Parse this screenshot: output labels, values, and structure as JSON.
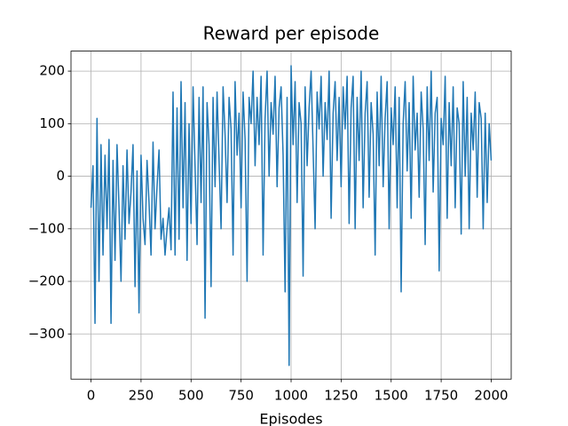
{
  "chart_data": {
    "type": "line",
    "title": "Reward per episode",
    "x_label": "Episodes",
    "x": [
      0,
      10,
      20,
      30,
      40,
      50,
      60,
      70,
      80,
      90,
      100,
      110,
      120,
      130,
      140,
      150,
      160,
      170,
      180,
      190,
      200,
      210,
      220,
      230,
      240,
      250,
      260,
      270,
      280,
      290,
      300,
      310,
      320,
      330,
      340,
      350,
      360,
      370,
      380,
      390,
      400,
      410,
      420,
      430,
      440,
      450,
      460,
      470,
      480,
      490,
      500,
      510,
      520,
      530,
      540,
      550,
      560,
      570,
      580,
      590,
      600,
      610,
      620,
      630,
      640,
      650,
      660,
      670,
      680,
      690,
      700,
      710,
      720,
      730,
      740,
      750,
      760,
      770,
      780,
      790,
      800,
      810,
      820,
      830,
      840,
      850,
      860,
      870,
      880,
      890,
      900,
      910,
      920,
      930,
      940,
      950,
      960,
      970,
      980,
      990,
      1000,
      1010,
      1020,
      1030,
      1040,
      1050,
      1060,
      1070,
      1080,
      1090,
      1100,
      1110,
      1120,
      1130,
      1140,
      1150,
      1160,
      1170,
      1180,
      1190,
      1200,
      1210,
      1220,
      1230,
      1240,
      1250,
      1260,
      1270,
      1280,
      1290,
      1300,
      1310,
      1320,
      1330,
      1340,
      1350,
      1360,
      1370,
      1380,
      1390,
      1400,
      1410,
      1420,
      1430,
      1440,
      1450,
      1460,
      1470,
      1480,
      1490,
      1500,
      1510,
      1520,
      1530,
      1540,
      1550,
      1560,
      1570,
      1580,
      1590,
      1600,
      1610,
      1620,
      1630,
      1640,
      1650,
      1660,
      1670,
      1680,
      1690,
      1700,
      1710,
      1720,
      1730,
      1740,
      1750,
      1760,
      1770,
      1780,
      1790,
      1800,
      1810,
      1820,
      1830,
      1840,
      1850,
      1860,
      1870,
      1880,
      1890,
      1900,
      1910,
      1920,
      1930,
      1940,
      1950,
      1960,
      1970,
      1980,
      1990,
      2000
    ],
    "series": [
      {
        "name": "Reward",
        "color": "#1f77b4",
        "values": [
          -60,
          20,
          -280,
          110,
          -200,
          60,
          -150,
          40,
          -100,
          70,
          -280,
          30,
          -160,
          60,
          -60,
          -200,
          20,
          -120,
          50,
          -90,
          -30,
          60,
          -210,
          10,
          -260,
          40,
          -80,
          -130,
          30,
          -50,
          -150,
          65,
          -100,
          -20,
          50,
          -120,
          -80,
          -150,
          -100,
          -60,
          -140,
          160,
          -150,
          130,
          -120,
          180,
          -60,
          140,
          -160,
          100,
          -90,
          170,
          20,
          -130,
          150,
          -50,
          170,
          -270,
          140,
          60,
          -210,
          150,
          -20,
          160,
          30,
          -100,
          170,
          80,
          -50,
          150,
          90,
          -150,
          180,
          40,
          120,
          -60,
          160,
          70,
          -200,
          150,
          100,
          200,
          20,
          150,
          60,
          190,
          -150,
          110,
          200,
          0,
          140,
          80,
          190,
          -20,
          130,
          170,
          40,
          -220,
          150,
          -360,
          210,
          60,
          180,
          -50,
          140,
          100,
          -190,
          170,
          20,
          130,
          200,
          50,
          -100,
          160,
          90,
          190,
          0,
          140,
          70,
          200,
          -80,
          120,
          180,
          30,
          150,
          -20,
          170,
          90,
          190,
          -90,
          130,
          190,
          -100,
          150,
          30,
          200,
          -60,
          120,
          180,
          -40,
          140,
          80,
          -150,
          160,
          20,
          190,
          -20,
          110,
          180,
          -100,
          130,
          60,
          170,
          -60,
          150,
          -220,
          100,
          180,
          10,
          140,
          -80,
          190,
          50,
          120,
          -40,
          160,
          90,
          -130,
          170,
          30,
          200,
          -30,
          120,
          150,
          -180,
          110,
          60,
          190,
          -80,
          140,
          20,
          170,
          -60,
          130,
          100,
          -110,
          180,
          0,
          150,
          -100,
          120,
          50,
          160,
          -40,
          140,
          110,
          -100,
          120,
          -50,
          100,
          30
        ]
      }
    ],
    "xlim": [
      -100,
      2100
    ],
    "ylim": [
      -386,
      238
    ],
    "xticks": [
      0,
      250,
      500,
      750,
      1000,
      1250,
      1500,
      1750,
      2000
    ],
    "yticks": [
      {
        "value": -300,
        "label": "−300"
      },
      {
        "value": -200,
        "label": "−200"
      },
      {
        "value": -100,
        "label": "−100"
      },
      0,
      100,
      200
    ],
    "grid": true
  }
}
